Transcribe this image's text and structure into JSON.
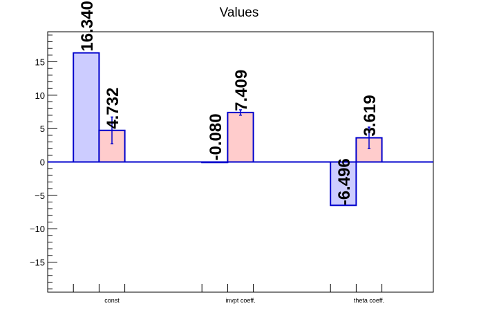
{
  "chart_data": {
    "type": "bar",
    "title": "Values",
    "categories": [
      "const",
      "invpt coeff.",
      "theta coeff."
    ],
    "series": [
      {
        "values": [
          16.34,
          -0.08,
          -6.496
        ],
        "labels": [
          "16.340",
          "-0.080",
          "-6.496"
        ],
        "errors": [
          0,
          0,
          0
        ],
        "fill": "#ccccff",
        "stroke": "#0000cc"
      },
      {
        "values": [
          4.732,
          7.409,
          3.619
        ],
        "labels": [
          "4.732",
          "7.409",
          "3.619"
        ],
        "errors": [
          2.0,
          0.4,
          1.6
        ],
        "fill": "#ffcccc",
        "stroke": "#0000cc"
      }
    ],
    "ylim": [
      -19.5,
      19.5
    ],
    "yticks": [
      -15,
      -10,
      -5,
      0,
      5,
      10,
      15
    ],
    "ytick_labels": [
      "−15",
      "−10",
      "−5",
      "0",
      "5",
      "10",
      "15"
    ],
    "grid": false,
    "legend": "none",
    "xlabel": "",
    "ylabel": ""
  }
}
